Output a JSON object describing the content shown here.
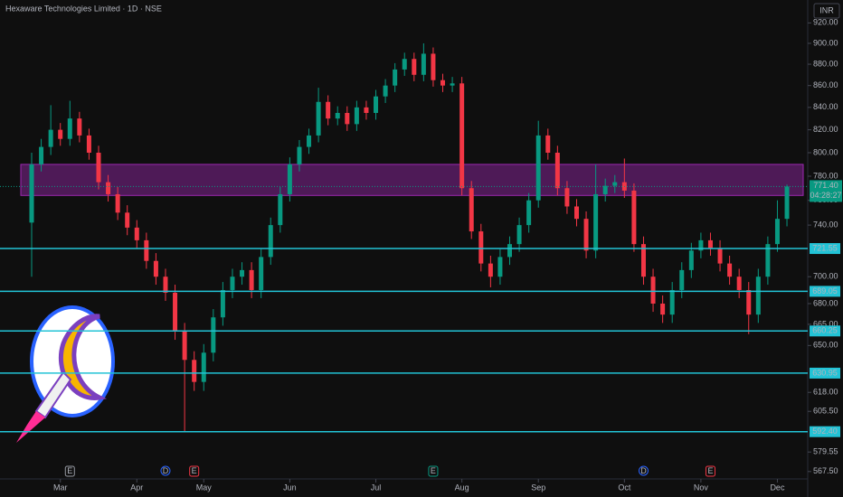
{
  "chart_data": {
    "type": "candlestick",
    "title": "Hexaware Technologies Limited · 1D · NSE",
    "currency": "INR",
    "log_scale": true,
    "up_color": "#089981",
    "down_color": "#f23645",
    "categories": [
      null,
      null,
      null,
      null,
      null,
      null,
      null,
      null,
      null,
      null,
      null,
      null,
      null,
      null,
      null,
      null,
      null,
      null,
      null,
      null,
      null,
      null,
      null,
      null,
      null,
      null,
      null,
      null,
      null,
      null,
      null,
      null,
      null,
      null,
      null,
      null,
      null,
      null,
      null,
      null,
      null,
      null,
      null,
      null,
      null,
      null,
      null,
      null,
      null,
      null,
      null,
      null,
      null,
      null,
      null,
      null,
      null,
      null,
      null,
      null,
      null,
      null,
      null,
      null,
      null,
      null,
      null,
      null,
      null,
      null,
      null,
      null,
      null,
      null,
      null,
      null,
      null,
      null,
      null,
      null
    ],
    "open": [
      742,
      790,
      805,
      820,
      812,
      830,
      815,
      800,
      775,
      765,
      750,
      738,
      728,
      712,
      700,
      688,
      660,
      640,
      625,
      645,
      670,
      690,
      700,
      705,
      690,
      715,
      740,
      765,
      790,
      805,
      815,
      845,
      830,
      835,
      825,
      840,
      835,
      850,
      860,
      875,
      885,
      870,
      890,
      865,
      860,
      862,
      770,
      735,
      710,
      700,
      715,
      725,
      740,
      760,
      815,
      800,
      770,
      755,
      745,
      720,
      765,
      772,
      775,
      768,
      725,
      700,
      680,
      672,
      690,
      705,
      720,
      728,
      722,
      710,
      700,
      690,
      672,
      700,
      725,
      745
    ],
    "high": [
      800,
      812,
      842,
      826,
      846,
      836,
      821,
      806,
      781,
      771,
      756,
      744,
      734,
      718,
      706,
      694,
      666,
      646,
      651,
      676,
      696,
      706,
      711,
      711,
      721,
      746,
      771,
      796,
      811,
      821,
      858,
      851,
      841,
      841,
      846,
      846,
      856,
      866,
      881,
      891,
      891,
      900,
      896,
      871,
      868,
      868,
      776,
      741,
      716,
      721,
      731,
      746,
      766,
      828,
      821,
      806,
      776,
      761,
      751,
      790,
      778,
      781,
      795,
      774,
      731,
      706,
      686,
      696,
      711,
      726,
      734,
      734,
      728,
      716,
      706,
      696,
      706,
      731,
      760,
      773
    ],
    "low": [
      700,
      784,
      798,
      806,
      806,
      809,
      794,
      769,
      759,
      744,
      732,
      722,
      706,
      694,
      682,
      654,
      592.4,
      619,
      619,
      639,
      664,
      684,
      694,
      684,
      684,
      709,
      734,
      759,
      784,
      799,
      809,
      824,
      824,
      819,
      819,
      829,
      829,
      844,
      854,
      869,
      864,
      864,
      859,
      854,
      854,
      764,
      729,
      704,
      692,
      694,
      709,
      719,
      734,
      754,
      794,
      764,
      749,
      739,
      714,
      714,
      759,
      766,
      762,
      719,
      694,
      674,
      666,
      666,
      684,
      699,
      714,
      716,
      704,
      694,
      684,
      658,
      666,
      694,
      719,
      739
    ],
    "close": [
      790,
      805,
      820,
      812,
      830,
      815,
      800,
      775,
      765,
      750,
      738,
      728,
      712,
      700,
      688,
      660,
      640,
      625,
      645,
      670,
      690,
      700,
      705,
      690,
      715,
      740,
      765,
      790,
      805,
      815,
      845,
      830,
      835,
      825,
      840,
      835,
      850,
      860,
      875,
      885,
      870,
      890,
      865,
      860,
      862,
      770,
      735,
      710,
      700,
      715,
      725,
      740,
      760,
      815,
      800,
      770,
      755,
      745,
      720,
      765,
      772,
      775,
      768,
      725,
      700,
      680,
      672,
      690,
      705,
      720,
      728,
      722,
      710,
      700,
      690,
      672,
      700,
      725,
      745,
      771.4
    ],
    "ylim": [
      563,
      943
    ],
    "yticks": [
      {
        "value": 920,
        "label": "920.00"
      },
      {
        "value": 900,
        "label": "900.00"
      },
      {
        "value": 880,
        "label": "880.00"
      },
      {
        "value": 860,
        "label": "860.00"
      },
      {
        "value": 840,
        "label": "840.00"
      },
      {
        "value": 820,
        "label": "820.00"
      },
      {
        "value": 800,
        "label": "800.00"
      },
      {
        "value": 780,
        "label": "780.00"
      },
      {
        "value": 760,
        "label": "760.00"
      },
      {
        "value": 740,
        "label": "740.00"
      },
      {
        "value": 700,
        "label": "700.00"
      },
      {
        "value": 680,
        "label": "680.00"
      },
      {
        "value": 665,
        "label": "665.00"
      },
      {
        "value": 650,
        "label": "650.00"
      },
      {
        "value": 618,
        "label": "618.00"
      },
      {
        "value": 605.5,
        "label": "605.50"
      },
      {
        "value": 579.55,
        "label": "579.55"
      },
      {
        "value": 567.5,
        "label": "567.50"
      }
    ],
    "xticks": [
      {
        "value": 3,
        "label": "Mar"
      },
      {
        "value": 11,
        "label": "Apr"
      },
      {
        "value": 18,
        "label": "May"
      },
      {
        "value": 27,
        "label": "Jun"
      },
      {
        "value": 36,
        "label": "Jul"
      },
      {
        "value": 45,
        "label": "Aug"
      },
      {
        "value": 53,
        "label": "Sep"
      },
      {
        "value": 62,
        "label": "Oct"
      },
      {
        "value": 70,
        "label": "Nov"
      },
      {
        "value": 78,
        "label": "Dec"
      }
    ],
    "levels": [
      {
        "value": 721.55,
        "label": "721.55"
      },
      {
        "value": 689.05,
        "label": "689.05"
      },
      {
        "value": 660.25,
        "label": "660.25"
      },
      {
        "value": 630.95,
        "label": "630.95"
      },
      {
        "value": 592.4,
        "label": "592.40"
      }
    ],
    "level_color": "#22c3d6",
    "zone": {
      "from": 764,
      "to": 790,
      "color": "#9c27b0"
    },
    "last_price": {
      "value": 771.4,
      "label": "771.40",
      "countdown": "04:28:27"
    },
    "events": [
      {
        "index": 4,
        "label": "E",
        "color": "#9598a1"
      },
      {
        "index": 14,
        "label": "D",
        "color": "#2962ff"
      },
      {
        "index": 17,
        "label": "E",
        "color": "#f23645"
      },
      {
        "index": 42,
        "label": "E",
        "color": "#089981"
      },
      {
        "index": 64,
        "label": "D",
        "color": "#2962ff"
      },
      {
        "index": 71,
        "label": "E",
        "color": "#f23645"
      }
    ]
  }
}
